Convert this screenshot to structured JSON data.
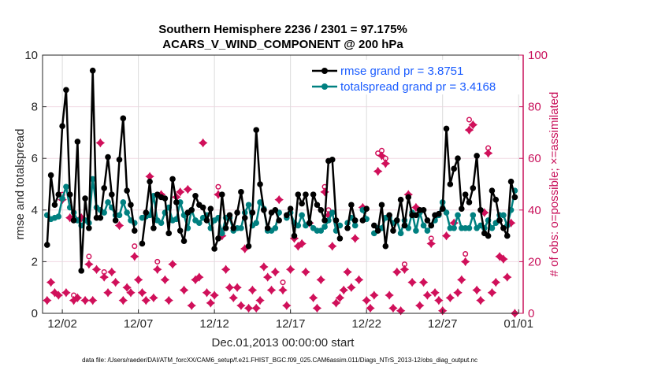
{
  "chart_data": {
    "type": "line",
    "title": [
      "Southern Hemisphere 2236 / 2301 = 97.175%",
      "ACARS_V_WIND_COMPONENT @ 200 hPa"
    ],
    "xlabel": "Dec.01,2013 00:00:00 start",
    "ylabel": "rmse and totalspread",
    "ylabel_right": "# of obs: o=possible; ×=assimilated",
    "footer": "data file: /Users/raeder/DAI/ATM_forcXX/CAM6_setup/f.e21.FHIST_BGC.f09_025.CAM6assim.011/Diags_NTrS_2013-12/obs_diag_output.nc",
    "xlim": [
      -0.3,
      31.3
    ],
    "ylim": [
      0,
      10
    ],
    "ylim_right": [
      0,
      100
    ],
    "x_start": 0,
    "x_step": 0.25,
    "xticks": [
      {
        "value": 1,
        "label": "12/02"
      },
      {
        "value": 6,
        "label": "12/07"
      },
      {
        "value": 11,
        "label": "12/12"
      },
      {
        "value": 16,
        "label": "12/17"
      },
      {
        "value": 21,
        "label": "12/22"
      },
      {
        "value": 26,
        "label": "12/27"
      },
      {
        "value": 31,
        "label": "01/01"
      }
    ],
    "yticks": [
      "0",
      "2",
      "4",
      "6",
      "8",
      "10"
    ],
    "yticks_right": [
      "0",
      "20",
      "40",
      "60",
      "80",
      "100"
    ],
    "legend_placement": "top-right",
    "colors": {
      "rmse": "#000000",
      "spread": "#008080",
      "obs": "#d0105a",
      "legend_text": "#1a5cff"
    },
    "series": [
      {
        "name": "rmse grand pr = 3.8751",
        "key": "rmse",
        "values": [
          2.65,
          5.35,
          4.2,
          4.6,
          7.25,
          8.65,
          4.6,
          3.6,
          6.65,
          1.65,
          4.45,
          3.3,
          9.4,
          3.7,
          3.7,
          4.85,
          6.05,
          4.6,
          3.6,
          5.95,
          7.55,
          4.75,
          4.2,
          3.2,
          null,
          2.7,
          3.9,
          5.1,
          3.3,
          4.6,
          4.5,
          4.45,
          3.1,
          5.2,
          4.3,
          3.2,
          2.8,
          3.9,
          4.0,
          4.55,
          4.2,
          4.1,
          3.6,
          4.05,
          2.5,
          2.9,
          4.6,
          3.3,
          3.8,
          3.3,
          3.9,
          4.7,
          3.7,
          2.6,
          3.9,
          7.1,
          5.0,
          4.0,
          3.3,
          3.9,
          4.0,
          3.6,
          null,
          3.8,
          4.05,
          3.0,
          4.6,
          4.25,
          4.6,
          3.5,
          4.6,
          4.2,
          4.0,
          3.6,
          5.9,
          5.95,
          3.6,
          2.9,
          null,
          3.3,
          4.2,
          3.6,
          null,
          3.6,
          4.05,
          null,
          3.4,
          3.2,
          4.2,
          2.6,
          3.8,
          3.2,
          3.6,
          4.4,
          3.4,
          4.5,
          3.8,
          3.8,
          4.0,
          4.0,
          3.6,
          3.4,
          3.8,
          3.85,
          4.05,
          7.15,
          5.0,
          5.6,
          6.0,
          4.05,
          4.6,
          4.3,
          4.85,
          6.1,
          4.0,
          3.1,
          3.0,
          4.75,
          4.4,
          3.6,
          3.3,
          3.0,
          5.1,
          4.5
        ]
      },
      {
        "name": "totalspread grand pr = 3.4168",
        "key": "spread",
        "values": [
          3.8,
          3.65,
          3.7,
          3.75,
          4.45,
          4.9,
          4.1,
          3.9,
          3.6,
          3.4,
          3.6,
          3.5,
          5.2,
          4.1,
          4.0,
          3.9,
          4.3,
          4.1,
          3.8,
          3.8,
          4.3,
          3.9,
          3.6,
          3.5,
          null,
          3.7,
          3.75,
          3.8,
          4.55,
          3.6,
          3.5,
          3.9,
          4.1,
          3.6,
          3.65,
          4.3,
          3.8,
          3.3,
          4.0,
          3.6,
          3.5,
          3.7,
          3.8,
          3.3,
          3.6,
          3.7,
          3.1,
          3.7,
          3.7,
          3.2,
          3.3,
          3.3,
          3.9,
          4.2,
          3.4,
          3.5,
          4.3,
          4.05,
          3.2,
          3.2,
          3.3,
          3.9,
          null,
          3.7,
          3.9,
          3.5,
          3.4,
          3.8,
          3.4,
          3.5,
          3.3,
          3.2,
          3.2,
          3.35,
          3.6,
          3.9,
          3.2,
          3.4,
          null,
          3.5,
          3.7,
          3.4,
          null,
          4.0,
          3.65,
          null,
          3.1,
          3.3,
          3.3,
          3.7,
          3.7,
          3.5,
          3.6,
          3.1,
          3.6,
          3.3,
          3.9,
          3.2,
          3.9,
          3.4,
          3.2,
          3.4,
          3.6,
          3.8,
          4.3,
          3.9,
          3.3,
          3.3,
          3.8,
          3.3,
          3.3,
          3.3,
          3.8,
          3.3,
          3.4,
          3.3,
          3.6,
          3.3,
          3.5,
          3.8,
          3.8,
          3.4,
          4.0,
          4.75
        ]
      },
      {
        "name": "possible",
        "key": "possible",
        "axis": "right",
        "values": [
          5,
          12,
          8,
          7,
          46,
          8,
          37,
          7,
          6,
          37,
          5,
          22,
          5,
          17,
          66,
          16,
          8,
          16,
          12,
          34,
          5,
          10,
          8,
          26,
          13,
          8,
          5,
          53,
          6,
          20,
          46,
          13,
          5,
          19,
          45,
          47,
          9,
          48,
          3,
          13,
          14,
          66,
          8,
          4,
          7,
          49,
          32,
          17,
          10,
          6,
          10,
          3,
          25,
          2,
          9,
          2,
          5,
          18,
          14,
          9,
          16,
          44,
          12,
          3,
          17,
          29,
          26,
          27,
          16,
          35,
          6,
          2,
          13,
          49,
          40,
          26,
          4,
          6,
          9,
          16,
          10,
          29,
          13,
          41,
          5,
          2,
          7,
          62,
          63,
          60,
          7,
          2,
          16,
          1,
          19,
          46,
          12,
          41,
          3,
          12,
          7,
          29,
          8,
          5,
          1,
          30,
          6,
          35,
          8,
          13,
          23,
          75,
          73,
          9,
          5,
          39,
          64,
          8,
          12,
          22,
          21,
          14,
          35,
          0
        ]
      },
      {
        "name": "assimilated",
        "key": "assimilated",
        "axis": "right",
        "values": [
          5,
          12,
          8,
          7,
          44,
          8,
          37,
          5,
          6,
          37,
          5,
          19,
          5,
          17,
          66,
          14,
          8,
          16,
          12,
          34,
          5,
          10,
          8,
          22,
          13,
          8,
          5,
          53,
          6,
          17,
          46,
          13,
          5,
          19,
          45,
          47,
          9,
          48,
          3,
          13,
          14,
          66,
          8,
          4,
          7,
          46,
          30,
          17,
          10,
          6,
          10,
          3,
          25,
          2,
          9,
          2,
          5,
          18,
          14,
          9,
          16,
          44,
          9,
          3,
          17,
          29,
          26,
          27,
          16,
          35,
          6,
          2,
          13,
          47,
          38,
          26,
          4,
          6,
          9,
          16,
          10,
          29,
          13,
          41,
          5,
          2,
          7,
          55,
          61,
          58,
          7,
          2,
          16,
          1,
          17,
          46,
          12,
          41,
          3,
          12,
          7,
          27,
          8,
          5,
          1,
          30,
          6,
          35,
          8,
          13,
          20,
          71,
          73,
          9,
          5,
          39,
          62,
          8,
          12,
          22,
          21,
          14,
          35,
          0
        ]
      }
    ]
  }
}
